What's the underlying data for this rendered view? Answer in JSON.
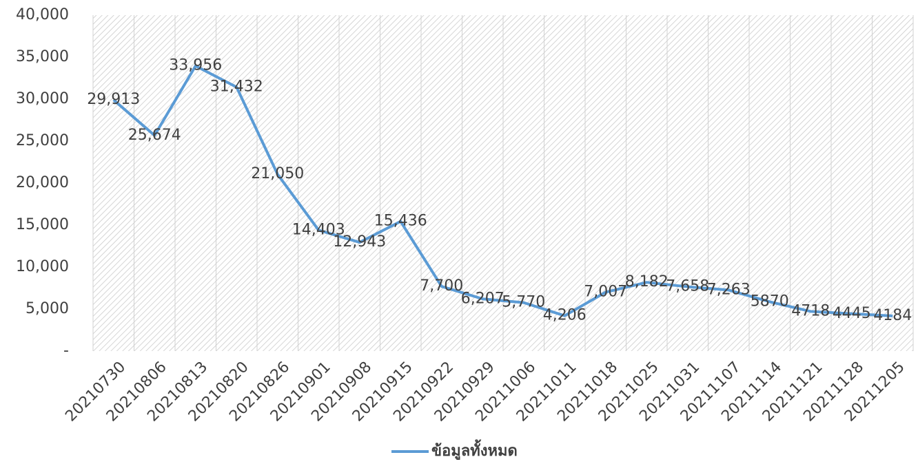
{
  "chart_data": {
    "type": "line",
    "categories": [
      "20210730",
      "20210806",
      "20210813",
      "20210820",
      "20210826",
      "20210901",
      "20210908",
      "20210915",
      "20210922",
      "20210929",
      "20211006",
      "20211011",
      "20211018",
      "20211025",
      "20211031",
      "20211107",
      "20211114",
      "20211121",
      "20211128",
      "20211205"
    ],
    "series": [
      {
        "name": "ข้อมูลทั้งหมด",
        "color": "#5b9bd5",
        "values": [
          29913,
          25674,
          33956,
          31432,
          21050,
          14403,
          12943,
          15436,
          7700,
          6207,
          5770,
          4206,
          7007,
          8182,
          7658,
          7263,
          5870,
          4718,
          4445,
          4184
        ],
        "value_labels": [
          "29,913",
          "25,674",
          "33,956",
          "31,432",
          "21,050",
          "14,403",
          "12,943",
          "15,436",
          "7,700",
          "6,207",
          "5,770",
          "4,206",
          "7,007",
          "8,182",
          "7,658",
          "7,263",
          "5870",
          "4718",
          "4445",
          "4184"
        ]
      }
    ],
    "ylim": [
      0,
      40000
    ],
    "yticks": [
      {
        "value": 0,
        "label": "-"
      },
      {
        "value": 5000,
        "label": "5,000"
      },
      {
        "value": 10000,
        "label": "10,000"
      },
      {
        "value": 15000,
        "label": "15,000"
      },
      {
        "value": 20000,
        "label": "20,000"
      },
      {
        "value": 25000,
        "label": "25,000"
      },
      {
        "value": 30000,
        "label": "30,000"
      },
      {
        "value": 35000,
        "label": "35,000"
      },
      {
        "value": 40000,
        "label": "40,000"
      }
    ],
    "legend": "bottom"
  }
}
